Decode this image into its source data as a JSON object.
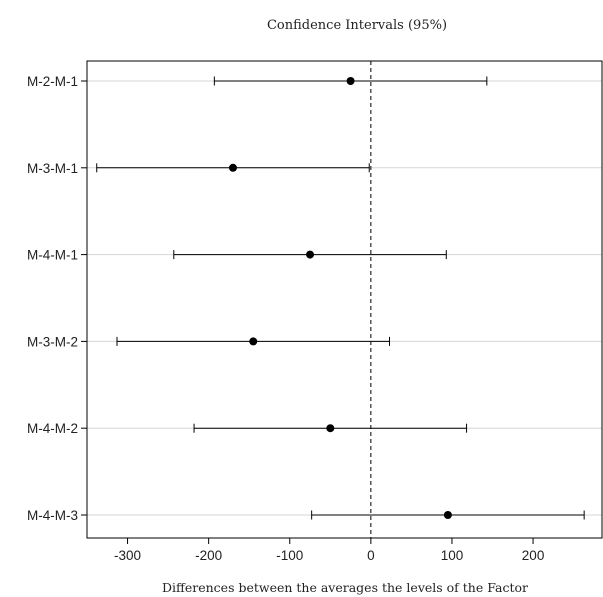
{
  "chart_data": {
    "type": "scatter",
    "subtype": "confidence-interval-plot",
    "title": "Confidence Intervals (95%)",
    "xlabel": "Differences between the averages the levels of the Factor",
    "ylabel": "",
    "xlim": [
      -350,
      285
    ],
    "xticks": [
      -300,
      -200,
      -100,
      0,
      100,
      200
    ],
    "reference_line": {
      "x": 0,
      "style": "dashed"
    },
    "grid": "horizontal at each comparison",
    "categories": [
      "M-2-M-1",
      "M-3-M-1",
      "M-4-M-1",
      "M-3-M-2",
      "M-4-M-2",
      "M-4-M-3"
    ],
    "estimates": [
      -25,
      -170,
      -75,
      -145,
      -50,
      95
    ],
    "lower": [
      -193,
      -338,
      -243,
      -313,
      -218,
      -73
    ],
    "upper": [
      143,
      -2,
      93,
      23,
      118,
      263
    ]
  }
}
